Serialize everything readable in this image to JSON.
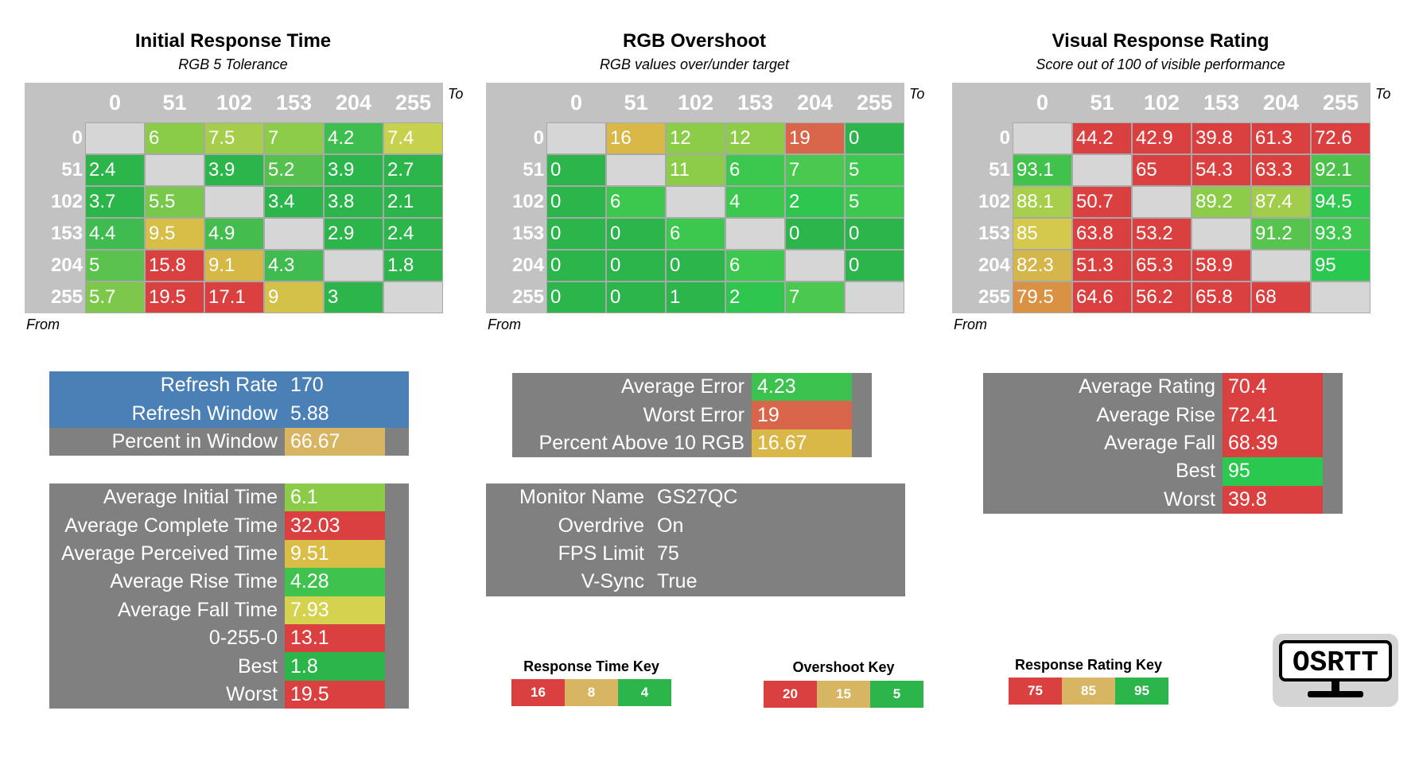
{
  "colors": {
    "diag": "#d6d6d6",
    "header": "#c2c2c2",
    "panel_grey": "#808080",
    "blue": "#4a80b6"
  },
  "chart_data": [
    {
      "type": "heatmap",
      "id": "initial",
      "title": "Initial Response Time",
      "subtitle": "RGB 5 Tolerance",
      "xlabel": "To",
      "ylabel": "From",
      "x": [
        "0",
        "51",
        "102",
        "153",
        "204",
        "255"
      ],
      "y": [
        "0",
        "51",
        "102",
        "153",
        "204",
        "255"
      ],
      "values": [
        [
          null,
          "6",
          "7.5",
          "7",
          "4.2",
          "7.4"
        ],
        [
          "2.4",
          null,
          "3.9",
          "5.2",
          "3.9",
          "2.7"
        ],
        [
          "3.7",
          "5.5",
          null,
          "3.4",
          "3.8",
          "2.1"
        ],
        [
          "4.4",
          "9.5",
          "4.9",
          null,
          "2.9",
          "2.4"
        ],
        [
          "5",
          "15.8",
          "9.1",
          "4.3",
          null,
          "1.8"
        ],
        [
          "5.7",
          "19.5",
          "17.1",
          "9",
          "3",
          null
        ]
      ],
      "colors": [
        [
          null,
          "#8acc48",
          "#a6cd4b",
          "#8dcc48",
          "#3fbe50",
          "#c6d24e"
        ],
        [
          "#2bb54b",
          null,
          "#2bb54b",
          "#56c04e",
          "#2bb54b",
          "#2bb54b"
        ],
        [
          "#2bb54b",
          "#78c84b",
          null,
          "#2bb54b",
          "#2bb54b",
          "#2bb54b"
        ],
        [
          "#40bb4f",
          "#d8bd47",
          "#45bd4e",
          null,
          "#2bb54b",
          "#2bb54b"
        ],
        [
          "#5ac24d",
          "#d9403f",
          "#d6b847",
          "#40bb4f",
          null,
          "#2bb54b"
        ],
        [
          "#7dc84b",
          "#d9403f",
          "#d9403f",
          "#d4c14a",
          "#2bb54b",
          null
        ]
      ]
    },
    {
      "type": "heatmap",
      "id": "overshoot",
      "title": "RGB Overshoot",
      "subtitle": "RGB values over/under target",
      "xlabel": "To",
      "ylabel": "From",
      "x": [
        "0",
        "51",
        "102",
        "153",
        "204",
        "255"
      ],
      "y": [
        "0",
        "51",
        "102",
        "153",
        "204",
        "255"
      ],
      "values": [
        [
          null,
          "16",
          "12",
          "12",
          "19",
          "0"
        ],
        [
          "0",
          null,
          "11",
          "6",
          "7",
          "5"
        ],
        [
          "0",
          "6",
          null,
          "4",
          "2",
          "5"
        ],
        [
          "0",
          "0",
          "6",
          null,
          "0",
          "0"
        ],
        [
          "0",
          "0",
          "0",
          "6",
          null,
          "0"
        ],
        [
          "0",
          "0",
          "1",
          "2",
          "7",
          null
        ]
      ],
      "colors": [
        [
          null,
          "#d9b847",
          "#8dcc48",
          "#8dcc48",
          "#d9654a",
          "#2bb54b"
        ],
        [
          "#2bb54b",
          null,
          "#8dcc48",
          "#3cc84f",
          "#4ac84f",
          "#3cc84f"
        ],
        [
          "#2bb54b",
          "#3cc84f",
          null,
          "#3cc84f",
          "#2fc64f",
          "#3cc84f"
        ],
        [
          "#2bb54b",
          "#2bb54b",
          "#3cc84f",
          null,
          "#2bb54b",
          "#2bb54b"
        ],
        [
          "#2bb54b",
          "#2bb54b",
          "#2bb54b",
          "#3cc84f",
          null,
          "#2bb54b"
        ],
        [
          "#2bb54b",
          "#2bb54b",
          "#2bb54b",
          "#2fc64f",
          "#4ac84f",
          null
        ]
      ]
    },
    {
      "type": "heatmap",
      "id": "visual",
      "title": "Visual Response Rating",
      "subtitle": "Score out of 100 of visible performance",
      "xlabel": "To",
      "ylabel": "From",
      "x": [
        "0",
        "51",
        "102",
        "153",
        "204",
        "255"
      ],
      "y": [
        "0",
        "51",
        "102",
        "153",
        "204",
        "255"
      ],
      "values": [
        [
          null,
          "44.2",
          "42.9",
          "39.8",
          "61.3",
          "72.6"
        ],
        [
          "93.1",
          null,
          "65",
          "54.3",
          "63.3",
          "92.1"
        ],
        [
          "88.1",
          "50.7",
          null,
          "89.2",
          "87.4",
          "94.5"
        ],
        [
          "85",
          "63.8",
          "53.2",
          null,
          "91.2",
          "93.3"
        ],
        [
          "82.3",
          "51.3",
          "65.3",
          "58.9",
          null,
          "95"
        ],
        [
          "79.5",
          "64.6",
          "56.2",
          "65.8",
          "68",
          null
        ]
      ],
      "colors": [
        [
          null,
          "#d9403f",
          "#d9403f",
          "#d9403f",
          "#d9403f",
          "#d9403f"
        ],
        [
          "#40c24d",
          null,
          "#d9403f",
          "#d9403f",
          "#d9403f",
          "#4cc24d"
        ],
        [
          "#a8cf4b",
          "#d9403f",
          null,
          "#8dcc48",
          "#a1cd4a",
          "#30c84f"
        ],
        [
          "#d4c94d",
          "#d9403f",
          "#d9403f",
          null,
          "#57c44d",
          "#3ec84f"
        ],
        [
          "#d4b64a",
          "#d9403f",
          "#d9403f",
          "#d9403f",
          null,
          "#2bc84f"
        ],
        [
          "#d99243",
          "#d9403f",
          "#d9403f",
          "#d9403f",
          "#d9403f",
          null
        ]
      ]
    }
  ],
  "panels": {
    "refresh": [
      {
        "label": "Refresh Rate",
        "value": "170",
        "bg": "#4a80b6",
        "vbg": "#4a80b6"
      },
      {
        "label": "Refresh Window",
        "value": "5.88",
        "bg": "#4a80b6",
        "vbg": "#4a80b6"
      },
      {
        "label": "Percent in Window",
        "value": "66.67",
        "bg": "#808080",
        "vbg": "#d7b563"
      }
    ],
    "times": [
      {
        "label": "Average Initial Time",
        "value": "6.1",
        "vbg": "#8acc48"
      },
      {
        "label": "Average Complete Time",
        "value": "32.03",
        "vbg": "#d9403f"
      },
      {
        "label": "Average Perceived Time",
        "value": "9.51",
        "vbg": "#d9bd47"
      },
      {
        "label": "Average Rise Time",
        "value": "4.28",
        "vbg": "#3fc24e"
      },
      {
        "label": "Average Fall Time",
        "value": "7.93",
        "vbg": "#d4d24e"
      },
      {
        "label": "0-255-0",
        "value": "13.1",
        "vbg": "#d9403f"
      },
      {
        "label": "Best",
        "value": "1.8",
        "vbg": "#2bb54b"
      },
      {
        "label": "Worst",
        "value": "19.5",
        "vbg": "#d9403f"
      }
    ],
    "error": [
      {
        "label": "Average Error",
        "value": "4.23",
        "vbg": "#3cc24f"
      },
      {
        "label": "Worst Error",
        "value": "19",
        "vbg": "#d9654a"
      },
      {
        "label": "Percent Above 10 RGB",
        "value": "16.67",
        "vbg": "#d9b847"
      }
    ],
    "monitor": [
      {
        "label": "Monitor Name",
        "value": "GS27QC"
      },
      {
        "label": "Overdrive",
        "value": "On"
      },
      {
        "label": "FPS Limit",
        "value": "75"
      },
      {
        "label": "V-Sync",
        "value": "True"
      }
    ],
    "rating": [
      {
        "label": "Average Rating",
        "value": "70.4",
        "vbg": "#d9403f"
      },
      {
        "label": "Average Rise",
        "value": "72.41",
        "vbg": "#d9403f"
      },
      {
        "label": "Average Fall",
        "value": "68.39",
        "vbg": "#d9403f"
      },
      {
        "label": "Best",
        "value": "95",
        "vbg": "#2bc84f"
      },
      {
        "label": "Worst",
        "value": "39.8",
        "vbg": "#d9403f"
      }
    ]
  },
  "keys": [
    {
      "title": "Response Time Key",
      "items": [
        {
          "v": "16",
          "c": "#d9403f"
        },
        {
          "v": "8",
          "c": "#d7b563"
        },
        {
          "v": "4",
          "c": "#2bb54b"
        }
      ]
    },
    {
      "title": "Overshoot Key",
      "items": [
        {
          "v": "20",
          "c": "#d9403f"
        },
        {
          "v": "15",
          "c": "#d7b563"
        },
        {
          "v": "5",
          "c": "#2bb54b"
        }
      ]
    },
    {
      "title": "Response Rating Key",
      "items": [
        {
          "v": "75",
          "c": "#d9403f"
        },
        {
          "v": "85",
          "c": "#d7b563"
        },
        {
          "v": "95",
          "c": "#2bb54b"
        }
      ]
    }
  ],
  "logo": {
    "text": "OSRTT"
  }
}
